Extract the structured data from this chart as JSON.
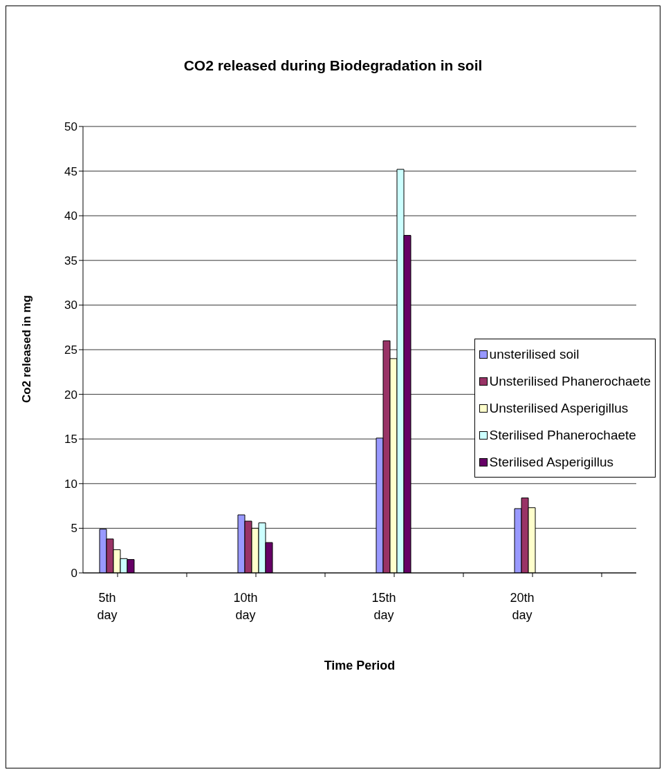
{
  "chart_data": {
    "type": "bar",
    "title": "CO2 released during Biodegradation in soil",
    "xlabel": "Time Period",
    "ylabel": "Co2 released in mg",
    "categories": [
      "5th day",
      null,
      "10th day",
      null,
      "15th day",
      null,
      "20th day",
      null
    ],
    "series": [
      {
        "name": "unsterilised soil",
        "color": "#9999ff",
        "values": [
          4.9,
          null,
          6.5,
          null,
          15.1,
          null,
          7.2,
          null
        ]
      },
      {
        "name": "Unsterilised Phanerochaete",
        "color": "#993366",
        "values": [
          3.8,
          null,
          5.8,
          null,
          26.0,
          null,
          8.4,
          null
        ]
      },
      {
        "name": "Unsterilised Asperigillus",
        "color": "#ffffcc",
        "values": [
          2.6,
          null,
          5.0,
          null,
          24.0,
          null,
          7.3,
          null
        ]
      },
      {
        "name": "Sterilised Phanerochaete",
        "color": "#ccffff",
        "values": [
          1.6,
          null,
          5.6,
          null,
          45.2,
          null,
          null,
          null
        ]
      },
      {
        "name": "Sterilised Asperigillus",
        "color": "#660066",
        "values": [
          1.5,
          null,
          3.4,
          null,
          37.8,
          null,
          null,
          null
        ]
      }
    ],
    "ylim": [
      0,
      50
    ],
    "yticks": [
      0,
      5,
      10,
      15,
      20,
      25,
      30,
      35,
      40,
      45,
      50
    ],
    "grid": "y",
    "legend": "right"
  }
}
